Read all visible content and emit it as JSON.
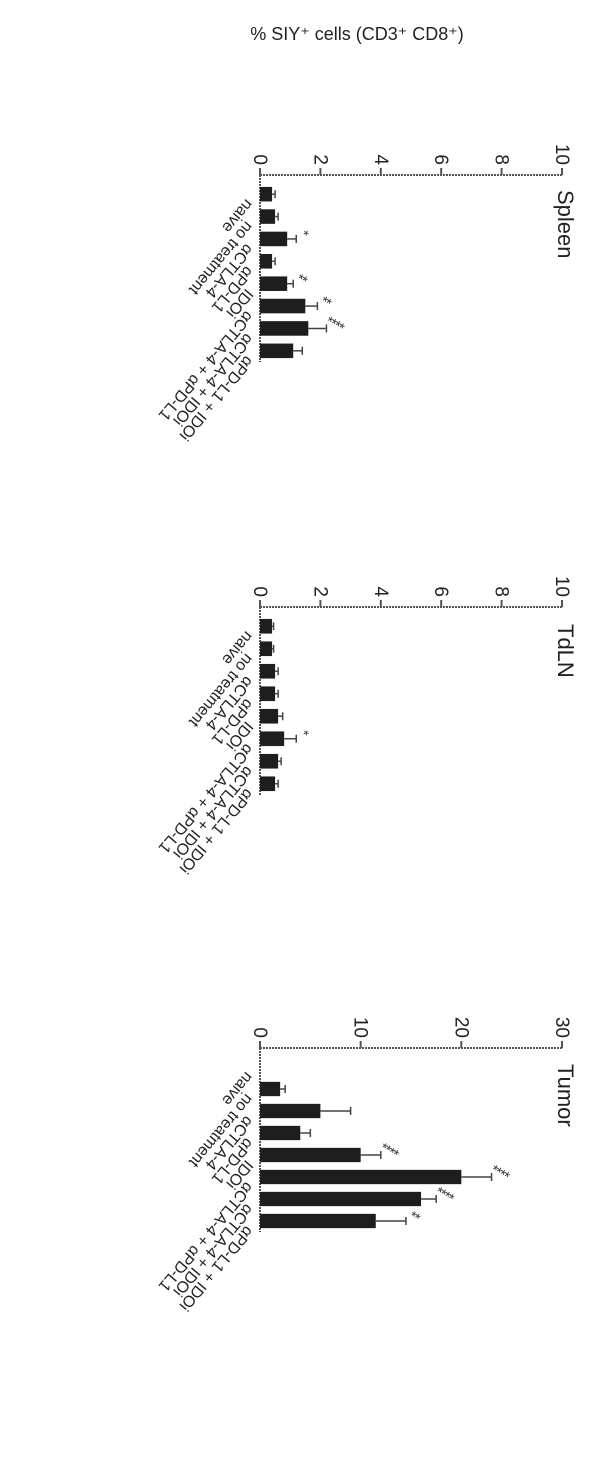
{
  "figure": {
    "ylabel": "% SIY⁺ cells (CD3⁺ CD8⁺)",
    "bar_color": "#1e1e1e",
    "axis_color": "#555555"
  },
  "chart_data": [
    {
      "type": "bar",
      "title": "Spleen",
      "ylabel": "% SIY⁺ cells (CD3⁺ CD8⁺)",
      "ylim": [
        0,
        10
      ],
      "yticks": [
        0,
        2,
        4,
        6,
        8,
        10
      ],
      "categories": [
        "naive",
        "no treatment",
        "αCTLA-4",
        "αPD-L1",
        "IDOi",
        "αCTLA-4 + αPD-L1",
        "αCTLA-4 + IDOi",
        "αPD-L1 + IDOi"
      ],
      "values": [
        0.4,
        0.5,
        0.9,
        0.4,
        0.9,
        1.5,
        1.6,
        1.1
      ],
      "errors": [
        0.1,
        0.1,
        0.3,
        0.1,
        0.2,
        0.4,
        0.6,
        0.3
      ],
      "significance": [
        "",
        "",
        "*",
        "",
        "**",
        "**",
        "****",
        ""
      ],
      "grid": false
    },
    {
      "type": "bar",
      "title": "TdLN",
      "ylabel": "",
      "ylim": [
        0,
        10
      ],
      "yticks": [
        0,
        2,
        4,
        6,
        8,
        10
      ],
      "categories": [
        "naive",
        "no treatment",
        "αCTLA-4",
        "αPD-L1",
        "IDOi",
        "αCTLA-4 + αPD-L1",
        "αCTLA-4 + IDOi",
        "αPD-L1 + IDOi"
      ],
      "values": [
        0.4,
        0.4,
        0.5,
        0.5,
        0.6,
        0.8,
        0.6,
        0.5
      ],
      "errors": [
        0.05,
        0.05,
        0.1,
        0.1,
        0.15,
        0.4,
        0.1,
        0.1
      ],
      "significance": [
        "",
        "",
        "",
        "",
        "",
        "*",
        "",
        ""
      ],
      "grid": false
    },
    {
      "type": "bar",
      "title": "Tumor",
      "ylabel": "",
      "ylim": [
        0,
        30
      ],
      "yticks": [
        0,
        10,
        20,
        30
      ],
      "categories": [
        "naive",
        "no treatment",
        "αCTLA-4",
        "αPD-L1",
        "IDOi",
        "αCTLA-4 + αPD-L1",
        "αCTLA-4 + IDOi",
        "αPD-L1 + IDOi"
      ],
      "values": [
        0,
        2.0,
        6.0,
        4.0,
        10.0,
        20.0,
        16.0,
        11.5
      ],
      "errors": [
        0,
        0.5,
        3.0,
        1.0,
        2.0,
        3.0,
        1.5,
        3.0
      ],
      "significance": [
        "",
        "",
        "",
        "",
        "****",
        "****",
        "****",
        "**"
      ],
      "grid": false
    }
  ]
}
